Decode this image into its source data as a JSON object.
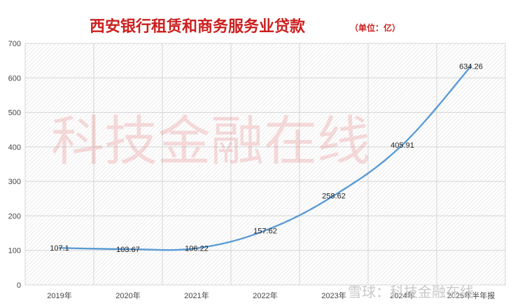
{
  "chart_data": {
    "type": "line",
    "title": "西安银行租赁和商务服务业贷款",
    "unit_note": "（单位：亿）",
    "categories": [
      "2019年",
      "2020年",
      "2021年",
      "2022年",
      "2023年",
      "2024年",
      "2025年半年报"
    ],
    "series": [
      {
        "values": [
          107.1,
          103.67,
          106.22,
          157.62,
          258.62,
          405.91,
          634.26
        ],
        "labels": [
          "107.1",
          "103.67",
          "106.22",
          "157.62",
          "258.62",
          "405.91",
          "634.26"
        ],
        "color": "#5b9bd5"
      }
    ],
    "yticks": [
      0,
      100,
      200,
      300,
      400,
      500,
      600,
      700
    ],
    "ylim": [
      0,
      700
    ],
    "grid": true,
    "plot_background": "hatched light gray"
  },
  "watermark": {
    "center_text": "科技金融在线",
    "corner_text": "雪球：科技金融在线"
  },
  "colors": {
    "title": "#cc1f1f",
    "line": "#5b9bd5"
  }
}
